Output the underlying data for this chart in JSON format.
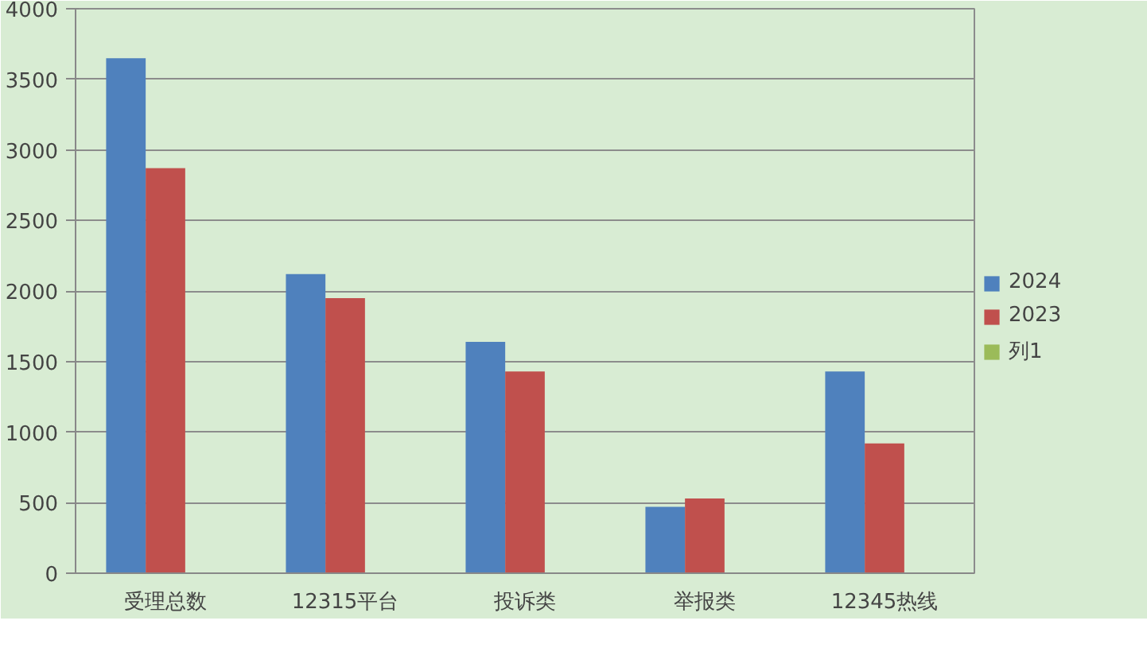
{
  "chart_data": {
    "type": "bar",
    "categories": [
      "受理总数",
      "12315平台",
      "投诉类",
      "举报类",
      "12345热线"
    ],
    "series": [
      {
        "name": "2024",
        "color": "#4f81bd",
        "values": [
          3650,
          2120,
          1640,
          470,
          1430
        ]
      },
      {
        "name": "2023",
        "color": "#c0504d",
        "values": [
          2870,
          1950,
          1430,
          530,
          920
        ]
      },
      {
        "name": "列1",
        "color": "#9bbb59",
        "values": [
          null,
          null,
          null,
          null,
          null
        ]
      }
    ],
    "ylim": [
      0,
      4000
    ],
    "yticks": [
      0,
      500,
      1000,
      1500,
      2000,
      2500,
      3000,
      3500,
      4000
    ],
    "grid": "y",
    "legend": "right"
  }
}
